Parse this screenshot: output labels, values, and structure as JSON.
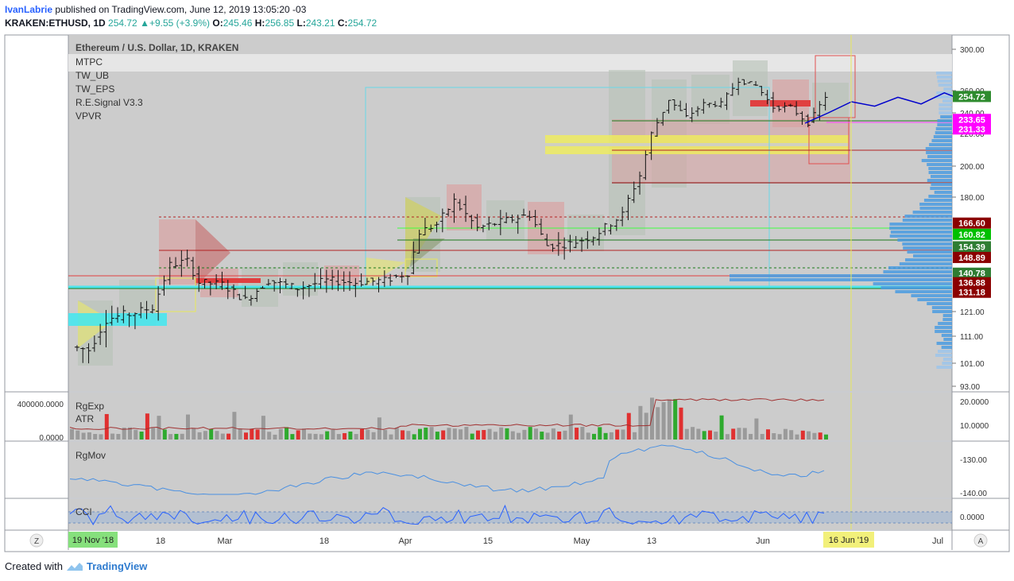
{
  "header": {
    "author": "IvanLabrie",
    "published_text": "published on TradingView.com, June 12, 2019 13:05:20 -03",
    "symbol": "KRAKEN:ETHUSD, 1D",
    "price": "254.72",
    "change": "+9.55 (+3.9%)",
    "o_label": "O:",
    "o_value": "245.46",
    "h_label": "H:",
    "h_value": "256.85",
    "l_label": "L:",
    "l_value": "243.21",
    "c_label": "C:",
    "c_value": "254.72"
  },
  "main_pane": {
    "title": "Ethereum / U.S. Dollar, 1D, KRAKEN",
    "indicators": [
      "MTPC",
      "TW_UB",
      "TW_EPS",
      "R.E.Signal V3.3",
      "VPVR"
    ]
  },
  "sub_panes": {
    "volume_labels": [
      "RgExp",
      "ATR"
    ],
    "volume_left_ticks": [
      "400000.0000",
      "0.0000"
    ],
    "volume_right_ticks": [
      "20.0000",
      "10.0000"
    ],
    "rgmov_label": "RgMov",
    "rgmov_ticks": [
      "-130.00",
      "-140.00"
    ],
    "cci_label": "CCI",
    "cci_ticks": [
      "0.0000"
    ]
  },
  "time_axis": {
    "start_badge": "19 Nov '18",
    "labels": [
      "18",
      "Mar",
      "18",
      "Apr",
      "15",
      "May",
      "13",
      "Jun",
      "Jul"
    ],
    "end_badge": "16 Jun '19",
    "left_button": "Z",
    "right_button": "A"
  },
  "price_badges": [
    "254.72",
    "233.65",
    "231.33",
    "166.60",
    "160.82",
    "154.39",
    "148.89",
    "140.78",
    "136.88",
    "131.18"
  ],
  "chart_data": {
    "type": "candlestick",
    "title": "Ethereum / U.S. Dollar, 1D, KRAKEN",
    "y_axis_ticks": [
      300,
      260,
      240,
      220,
      200,
      180,
      121,
      111,
      101,
      93
    ],
    "price_levels": [
      254.72,
      233.65,
      231.33,
      166.6,
      160.82,
      154.39,
      148.89,
      140.78,
      136.88,
      131.18
    ],
    "close_path": [
      {
        "x": "2019-02-02",
        "y": 107
      },
      {
        "x": "2019-02-05",
        "y": 106
      },
      {
        "x": "2019-02-08",
        "y": 118
      },
      {
        "x": "2019-02-12",
        "y": 120
      },
      {
        "x": "2019-02-16",
        "y": 123
      },
      {
        "x": "2019-02-19",
        "y": 145
      },
      {
        "x": "2019-02-22",
        "y": 147
      },
      {
        "x": "2019-02-24",
        "y": 136
      },
      {
        "x": "2019-02-28",
        "y": 135
      },
      {
        "x": "2019-03-04",
        "y": 127
      },
      {
        "x": "2019-03-08",
        "y": 137
      },
      {
        "x": "2019-03-13",
        "y": 133
      },
      {
        "x": "2019-03-18",
        "y": 137
      },
      {
        "x": "2019-03-23",
        "y": 136
      },
      {
        "x": "2019-03-28",
        "y": 137
      },
      {
        "x": "2019-04-01",
        "y": 141
      },
      {
        "x": "2019-04-03",
        "y": 162
      },
      {
        "x": "2019-04-06",
        "y": 166
      },
      {
        "x": "2019-04-09",
        "y": 178
      },
      {
        "x": "2019-04-13",
        "y": 164
      },
      {
        "x": "2019-04-18",
        "y": 168
      },
      {
        "x": "2019-04-22",
        "y": 171
      },
      {
        "x": "2019-04-25",
        "y": 155
      },
      {
        "x": "2019-04-29",
        "y": 156
      },
      {
        "x": "2019-05-03",
        "y": 160
      },
      {
        "x": "2019-05-08",
        "y": 171
      },
      {
        "x": "2019-05-11",
        "y": 194
      },
      {
        "x": "2019-05-13",
        "y": 220
      },
      {
        "x": "2019-05-16",
        "y": 252
      },
      {
        "x": "2019-05-19",
        "y": 236
      },
      {
        "x": "2019-05-22",
        "y": 248
      },
      {
        "x": "2019-05-25",
        "y": 248
      },
      {
        "x": "2019-05-28",
        "y": 270
      },
      {
        "x": "2019-05-31",
        "y": 265
      },
      {
        "x": "2019-06-03",
        "y": 245
      },
      {
        "x": "2019-06-06",
        "y": 245
      },
      {
        "x": "2019-06-09",
        "y": 230
      },
      {
        "x": "2019-06-12",
        "y": 254.72
      }
    ],
    "projection_path": [
      {
        "x": "2019-06-08",
        "y": 230
      },
      {
        "x": "2019-06-12",
        "y": 240
      },
      {
        "x": "2019-06-16",
        "y": 250
      },
      {
        "x": "2019-06-20",
        "y": 246
      },
      {
        "x": "2019-06-24",
        "y": 254
      },
      {
        "x": "2019-06-28",
        "y": 248
      },
      {
        "x": "2019-07-02",
        "y": 258
      },
      {
        "x": "2019-07-04",
        "y": 254
      }
    ]
  }
}
